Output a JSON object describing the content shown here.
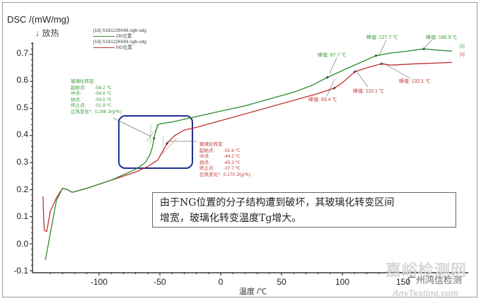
{
  "chart_data": {
    "type": "line",
    "title": "",
    "xlabel": "温度 /℃",
    "ylabel": "DSC /(mW/mg)",
    "y_direction_note": "↓ 放热",
    "xlim": [
      -150,
      200
    ],
    "ylim": [
      -0.1,
      0.75
    ],
    "x_ticks": [
      -100,
      -50,
      0,
      50,
      100,
      150
    ],
    "y_ticks": [
      -0.1,
      0.0,
      0.1,
      0.2,
      0.3,
      0.4,
      0.5,
      0.6,
      0.7
    ],
    "grid": false,
    "legend_position": "top-left",
    "series": [
      {
        "name": "OK位置",
        "file": "[18] S161226048.ngb-sdg",
        "color": "#2e8b2e",
        "end_tag": "[1]",
        "x": [
          -144,
          -140,
          -135,
          -130,
          -126,
          -122,
          -110,
          -100,
          -90,
          -80,
          -70,
          -62,
          -58,
          -56,
          -54.8,
          -53,
          -51.9,
          -48,
          -40,
          -30,
          -20,
          -10,
          0,
          20,
          40,
          60,
          75,
          87.7,
          100,
          115,
          127.7,
          140,
          150,
          166.9,
          180,
          190
        ],
        "y": [
          -0.06,
          0.04,
          0.16,
          0.205,
          0.2,
          0.19,
          0.205,
          0.22,
          0.235,
          0.255,
          0.275,
          0.3,
          0.33,
          0.36,
          0.39,
          0.42,
          0.44,
          0.445,
          0.45,
          0.46,
          0.47,
          0.48,
          0.49,
          0.51,
          0.535,
          0.56,
          0.585,
          0.615,
          0.64,
          0.67,
          0.695,
          0.705,
          0.71,
          0.72,
          0.715,
          0.712
        ]
      },
      {
        "name": "NG位置",
        "file": "[19] S161226049.ngb-sdg",
        "color": "#c03030",
        "end_tag": "[2]",
        "x": [
          -146,
          -145.5,
          -145,
          -143,
          -140,
          -135,
          -130,
          -126,
          -122,
          -110,
          -100,
          -90,
          -80,
          -70,
          -60,
          -51.6,
          -48,
          -45.3,
          -44.2,
          -40,
          -37.7,
          -30,
          -20,
          0,
          20,
          40,
          60,
          80,
          93.4,
          100,
          110.1,
          120,
          132.1,
          140,
          160,
          190
        ],
        "y": [
          0.175,
          0.1,
          0.05,
          0.045,
          0.12,
          0.17,
          0.205,
          0.2,
          0.19,
          0.205,
          0.22,
          0.235,
          0.25,
          0.265,
          0.285,
          0.31,
          0.34,
          0.36,
          0.37,
          0.39,
          0.4,
          0.42,
          0.43,
          0.455,
          0.48,
          0.505,
          0.53,
          0.555,
          0.575,
          0.595,
          0.635,
          0.65,
          0.665,
          0.66,
          0.665,
          0.67
        ]
      }
    ],
    "annotations": [
      {
        "series": "OK位置",
        "type": "glass_transition",
        "title": "玻璃化转变:",
        "onset": "-58.2 ℃",
        "midpoint": "-54.8 ℃",
        "inflection": "-54.5 ℃",
        "end": "-51.9 ℃",
        "delta_cp": "0.296 J/(g*K)"
      },
      {
        "series": "NG位置",
        "type": "glass_transition",
        "title": "玻璃化转变:",
        "onset": "-51.6 ℃",
        "midpoint": "-44.2 ℃",
        "inflection": "-45.3 ℃",
        "end": "-37.7 ℃",
        "delta_cp": "0.170 J/(g*K)"
      },
      {
        "series": "OK位置",
        "type": "peak",
        "label": "峰值: 87.7 ℃"
      },
      {
        "series": "OK位置",
        "type": "peak",
        "label": "峰值: 127.7 ℃"
      },
      {
        "series": "OK位置",
        "type": "peak",
        "label": "峰值: 166.9 ℃"
      },
      {
        "series": "NG位置",
        "type": "peak",
        "label": "峰值: 93.4 ℃"
      },
      {
        "series": "NG位置",
        "type": "peak",
        "label": "峰值: 110.1 ℃"
      },
      {
        "series": "NG位置",
        "type": "peak",
        "label": "峰值: 132.1 ℃"
      }
    ],
    "highlight_box": {
      "x_range": [
        -80,
        -25
      ],
      "y_range": [
        0.28,
        0.44
      ],
      "color": "#1f2f8f"
    }
  },
  "axis": {
    "ylabel": "DSC /(mW/mg)",
    "exo_note": "↓ 放热",
    "xlabel": "温度 /℃",
    "x_ticks": [
      "-100",
      "-50",
      "0",
      "50",
      "100",
      "150"
    ],
    "y_ticks": [
      "0.7",
      "0.6",
      "0.5",
      "0.4",
      "0.3",
      "0.2",
      "0.1",
      "0.0",
      "-0.1"
    ]
  },
  "legend": {
    "items": [
      {
        "file": "[18]  S161226048.ngb-sdg",
        "name": "OK位置",
        "color": "#2e8b2e"
      },
      {
        "file": "[19]  S161226049.ngb-sdg",
        "name": "NG位置",
        "color": "#c03030"
      }
    ]
  },
  "tg_ok": {
    "title": "玻璃化转变:",
    "rows": [
      {
        "label": "起始点:",
        "value": "-58.2 ℃"
      },
      {
        "label": "中点:",
        "value": "-54.8 ℃"
      },
      {
        "label": "拐点:",
        "value": "-54.5 ℃"
      },
      {
        "label": "终止点:",
        "value": "-51.9 ℃"
      },
      {
        "label": "比热变化*:",
        "value": "0.296 J/(g*K)"
      }
    ]
  },
  "tg_ng": {
    "title": "玻璃化转变:",
    "rows": [
      {
        "label": "起始点:",
        "value": "-51.6 ℃"
      },
      {
        "label": "中点:",
        "value": "-44.2 ℃"
      },
      {
        "label": "拐点:",
        "value": "-45.3 ℃"
      },
      {
        "label": "终止点:",
        "value": "-37.7 ℃"
      },
      {
        "label": "比热变化*:",
        "value": "0.170 J/(g*K)"
      }
    ]
  },
  "peaks": {
    "ok": [
      "峰值: 87.7 ℃",
      "峰值: 127.7 ℃",
      "峰值: 166.9 ℃"
    ],
    "ng": [
      "峰值: 93.4 ℃",
      "峰值: 110.1 ℃",
      "峰值: 132.1 ℃"
    ]
  },
  "end_tags": {
    "ok": "[1]",
    "ng": "[2]"
  },
  "note": {
    "line1": "由于NG位置的分子结构遭到破坏，其玻璃化转变区间",
    "line2": "增宽，玻璃化转变温度Tg增大。"
  },
  "watermark": {
    "main": "嘉峪检测网",
    "sub": "AnyTesting.com",
    "account": "广州鸿信检测"
  }
}
